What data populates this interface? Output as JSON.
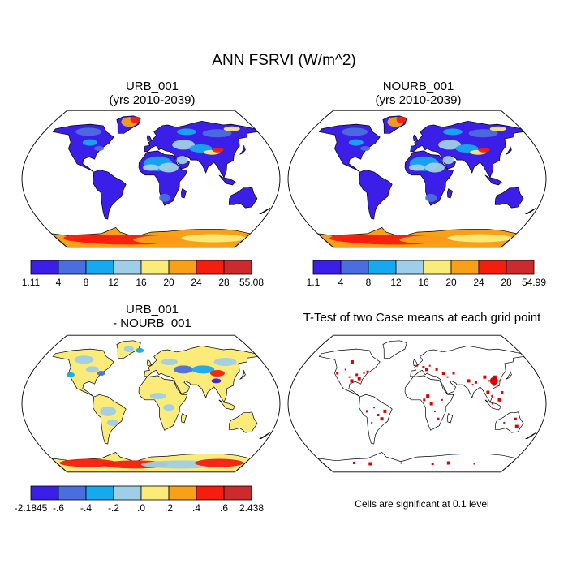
{
  "title": "ANN FSRVI (W/m^2)",
  "panels": [
    {
      "title_line1": "URB_001",
      "title_line2": "(yrs 2010-2039)",
      "colorbar": {
        "colors": [
          "#3b1ee8",
          "#4a6ee0",
          "#16a9ef",
          "#9fcfe8",
          "#fbeb78",
          "#f8a018",
          "#f51e0e",
          "#cc2a2c"
        ],
        "labels": [
          "1.11",
          "4",
          "8",
          "12",
          "16",
          "20",
          "24",
          "28",
          "55.08"
        ]
      }
    },
    {
      "title_line1": "NOURB_001",
      "title_line2": "(yrs 2010-2039)",
      "colorbar": {
        "colors": [
          "#3b1ee8",
          "#4a6ee0",
          "#16a9ef",
          "#9fcfe8",
          "#fbeb78",
          "#f8a018",
          "#f51e0e",
          "#cc2a2c"
        ],
        "labels": [
          "1.1",
          "4",
          "8",
          "12",
          "16",
          "20",
          "24",
          "28",
          "54.99"
        ]
      }
    },
    {
      "title_line1": "URB_001",
      "title_line2": "- NOURB_001",
      "colorbar": {
        "colors": [
          "#3b1ee8",
          "#4a6ee0",
          "#16a9ef",
          "#9fcfe8",
          "#fbeb78",
          "#f8a018",
          "#f51e0e",
          "#cc2a2c"
        ],
        "labels": [
          "-2.1845",
          "-.6",
          "-.4",
          "-.2",
          ".0",
          ".2",
          ".4",
          ".6",
          "2.438"
        ]
      }
    },
    {
      "title_line1": "T-Test of two Case means at each grid point",
      "note": "Cells are significant at 0.1 level",
      "marker_color": "#e00000"
    }
  ]
}
